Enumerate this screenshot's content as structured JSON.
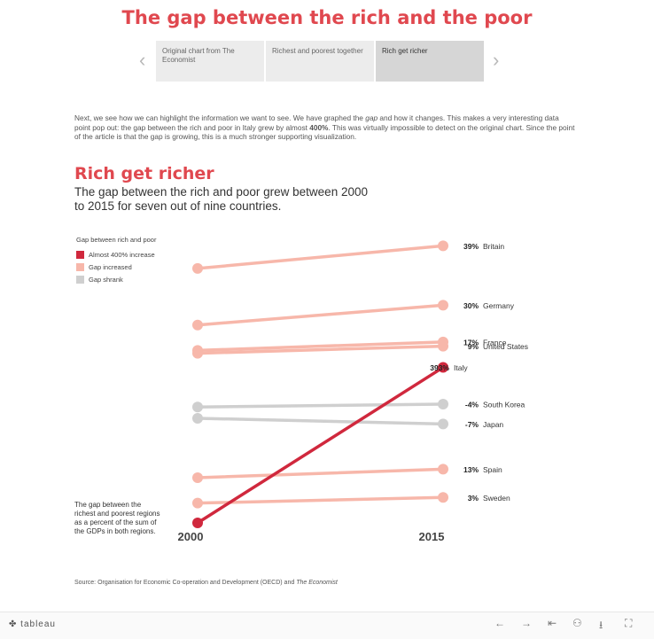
{
  "header": {
    "title": "The gap between the rich and the poor",
    "story_points": [
      "Original chart from The Economist",
      "Richest and poorest together",
      "Rich get richer"
    ],
    "active_index": 2
  },
  "intro": {
    "part1": "Next, we see how we can highlight the information we want to see. We have graphed the ",
    "gap": "gap",
    "part2": " and how it changes. This makes a very interesting data point pop out: the gap between the rich and poor in Italy grew by almost ",
    "pct": "400%",
    "part3": ". This was virtually impossible to detect on the original chart. Since the point of the article is that the gap is growing, this is a much stronger supporting visualization."
  },
  "legend": {
    "title": "Gap between rich and poor",
    "items": [
      {
        "label": "Almost 400% increase",
        "color": "#d0283d"
      },
      {
        "label": "Gap increased",
        "color": "#f7b7aa"
      },
      {
        "label": "Gap shrank",
        "color": "#cfcfcf"
      }
    ]
  },
  "note": "The gap between the richest and poorest regions as a percent of the sum of the GDPs in both regions.",
  "source": {
    "text": "Source: Organisation for Economic Co-operation and Development (OECD) and ",
    "italic": "The Economist"
  },
  "footer": {
    "brand": "tableau",
    "icons": [
      "undo-icon",
      "redo-icon",
      "revert-icon",
      "share-icon",
      "download-icon",
      "fullscreen-icon"
    ]
  },
  "chart_data": {
    "type": "slope",
    "title": "Rich get richer",
    "subtitle": "The gap between the rich and poor grew between 2000 to 2015 for seven out of nine countries.",
    "x": [
      "2000",
      "2015"
    ],
    "ylim": [
      0,
      1
    ],
    "series": [
      {
        "name": "Britain",
        "change": "39%",
        "values": [
          0.9,
          0.98
        ],
        "group": "Gap increased"
      },
      {
        "name": "Germany",
        "change": "30%",
        "values": [
          0.7,
          0.77
        ],
        "group": "Gap increased"
      },
      {
        "name": "France",
        "change": "17%",
        "values": [
          0.61,
          0.64
        ],
        "group": "Gap increased"
      },
      {
        "name": "United States",
        "change": "9%",
        "values": [
          0.6,
          0.625
        ],
        "group": "Gap increased"
      },
      {
        "name": "Italy",
        "change": "393%",
        "values": [
          0.0,
          0.55
        ],
        "group": "Almost 400% increase"
      },
      {
        "name": "South Korea",
        "change": "-4%",
        "values": [
          0.41,
          0.42
        ],
        "group": "Gap shrank"
      },
      {
        "name": "Japan",
        "change": "-7%",
        "values": [
          0.37,
          0.35
        ],
        "group": "Gap shrank"
      },
      {
        "name": "Spain",
        "change": "13%",
        "values": [
          0.16,
          0.19
        ],
        "group": "Gap increased"
      },
      {
        "name": "Sweden",
        "change": "3%",
        "values": [
          0.07,
          0.09
        ],
        "group": "Gap increased"
      }
    ],
    "group_colors": {
      "Almost 400% increase": "#d0283d",
      "Gap increased": "#f7b7aa",
      "Gap shrank": "#cfcfcf"
    }
  }
}
